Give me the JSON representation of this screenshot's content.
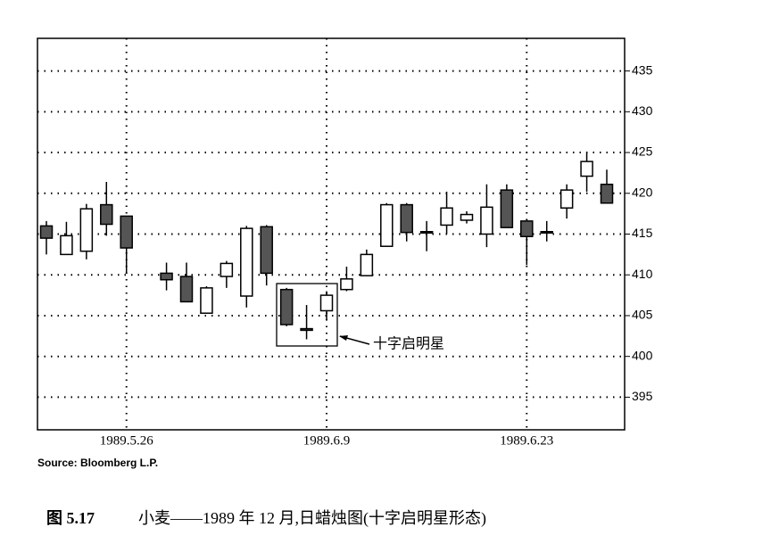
{
  "chart_data": {
    "type": "candlestick",
    "categories": [
      null,
      null,
      null,
      null,
      "1989.5.26",
      null,
      null,
      null,
      null,
      null,
      null,
      null,
      null,
      null,
      "1989.6.9",
      null,
      null,
      null,
      null,
      null,
      null,
      null,
      null,
      null,
      "1989.6.23",
      null,
      null,
      null,
      null
    ],
    "open": [
      416.0,
      412.5,
      412.9,
      418.6,
      417.2,
      null,
      410.2,
      409.8,
      405.3,
      409.8,
      407.4,
      415.9,
      408.2,
      403.4,
      405.6,
      408.2,
      409.9,
      413.5,
      418.6,
      415.3,
      416.1,
      416.7,
      415.0,
      420.4,
      416.6,
      415.2,
      418.2,
      422.1,
      421.1
    ],
    "high": [
      416.6,
      416.5,
      418.7,
      421.4,
      417.2,
      null,
      411.5,
      411.5,
      408.6,
      411.7,
      416.0,
      416.1,
      408.4,
      406.3,
      408.0,
      411.0,
      413.1,
      418.8,
      418.8,
      416.6,
      420.2,
      417.8,
      421.1,
      421.1,
      416.6,
      416.6,
      421.1,
      425.1,
      422.9
    ],
    "low": [
      412.5,
      412.5,
      411.9,
      414.8,
      410.3,
      null,
      408.1,
      406.7,
      405.3,
      408.4,
      406.0,
      408.7,
      403.7,
      402.1,
      404.5,
      408.0,
      409.9,
      413.5,
      414.1,
      412.9,
      415.0,
      416.3,
      413.4,
      415.8,
      411.2,
      414.1,
      416.9,
      420.2,
      418.8
    ],
    "close": [
      414.5,
      414.8,
      418.1,
      416.2,
      413.3,
      null,
      409.4,
      406.7,
      408.4,
      411.4,
      415.7,
      410.2,
      403.9,
      403.2,
      407.5,
      409.5,
      412.5,
      418.6,
      415.2,
      415.3,
      418.2,
      417.4,
      418.3,
      415.8,
      414.7,
      415.3,
      420.4,
      423.9,
      418.8
    ],
    "up_color": "#ffffff",
    "down_color": "#555555",
    "ylim": [
      391,
      439
    ],
    "yticks": [
      395,
      400,
      405,
      410,
      415,
      420,
      425,
      430,
      435
    ],
    "grid": true,
    "annotation": "十字启明星",
    "source": "Source: Bloomberg L.P.",
    "figure_number": "图 5.17",
    "caption": "小麦——1989 年 12 月,日蜡烛图(十字启明星形态)"
  }
}
